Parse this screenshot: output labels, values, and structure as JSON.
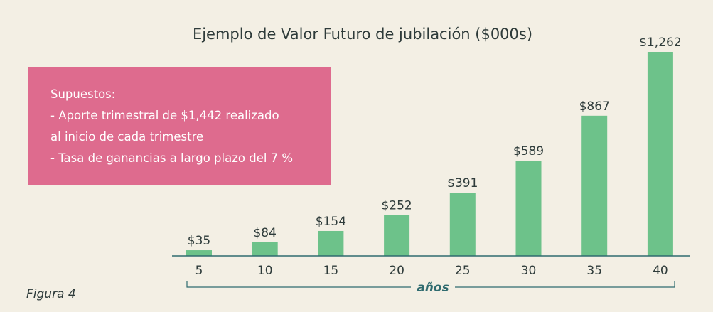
{
  "chart_data": {
    "type": "bar",
    "title": "Ejemplo de Valor Futuro de jubilación ($000s)",
    "xlabel": "años",
    "ylabel": "",
    "categories": [
      "5",
      "10",
      "15",
      "20",
      "25",
      "30",
      "35",
      "40"
    ],
    "values": [
      35,
      84,
      154,
      252,
      391,
      589,
      867,
      1262
    ],
    "value_labels": [
      "$35",
      "$84",
      "$154",
      "$252",
      "$391",
      "$589",
      "$867",
      "$1,262"
    ],
    "ylim": [
      0,
      1262
    ],
    "grid": false,
    "bar_color": "#6dc28a"
  },
  "assumptions": {
    "heading": "Supuestos:",
    "line1": "- Aporte trimestral de $1,442 realizado",
    "line2": "al inicio de cada trimestre",
    "line3": "- Tasa de ganancias a largo plazo del 7 %",
    "box_color": "#de6b8e"
  },
  "figure_label": "Figura 4"
}
